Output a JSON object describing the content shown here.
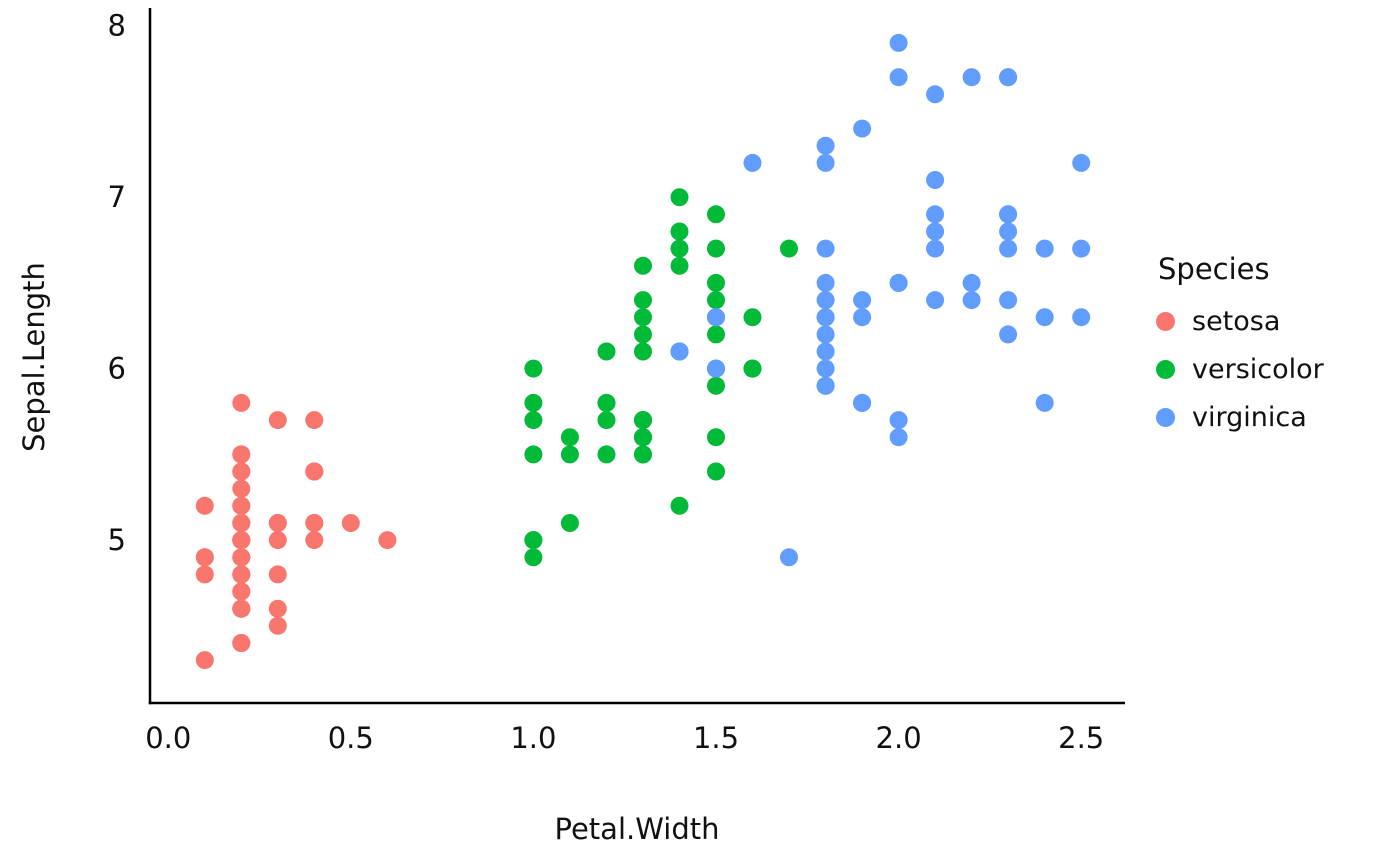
{
  "chart_data": {
    "type": "scatter",
    "title": "",
    "xlabel": "Petal.Width",
    "ylabel": "Sepal.Length",
    "xlim": [
      -0.05,
      2.62
    ],
    "ylim": [
      4.05,
      8.08
    ],
    "x_ticks": [
      "0.0",
      "0.5",
      "1.0",
      "1.5",
      "2.0",
      "2.5"
    ],
    "y_ticks": [
      "5",
      "6",
      "7",
      "8"
    ],
    "grid": false,
    "marker_radius_px": 9,
    "axis_color": "#000000",
    "text_color": "#111111",
    "legend": {
      "title": "Species",
      "position": "right"
    },
    "series": [
      {
        "name": "setosa",
        "color": "#F8766D",
        "points": [
          [
            0.2,
            5.1
          ],
          [
            0.2,
            4.9
          ],
          [
            0.2,
            4.7
          ],
          [
            0.2,
            4.6
          ],
          [
            0.2,
            5.0
          ],
          [
            0.4,
            5.4
          ],
          [
            0.3,
            4.6
          ],
          [
            0.2,
            5.0
          ],
          [
            0.2,
            4.4
          ],
          [
            0.1,
            4.9
          ],
          [
            0.2,
            5.4
          ],
          [
            0.2,
            4.8
          ],
          [
            0.1,
            4.8
          ],
          [
            0.1,
            4.3
          ],
          [
            0.2,
            5.8
          ],
          [
            0.4,
            5.7
          ],
          [
            0.4,
            5.4
          ],
          [
            0.3,
            5.1
          ],
          [
            0.3,
            5.7
          ],
          [
            0.3,
            5.1
          ],
          [
            0.2,
            5.4
          ],
          [
            0.4,
            5.1
          ],
          [
            0.2,
            4.6
          ],
          [
            0.5,
            5.1
          ],
          [
            0.2,
            4.8
          ],
          [
            0.2,
            5.0
          ],
          [
            0.4,
            5.0
          ],
          [
            0.2,
            5.2
          ],
          [
            0.2,
            5.2
          ],
          [
            0.2,
            4.7
          ],
          [
            0.2,
            4.8
          ],
          [
            0.4,
            5.4
          ],
          [
            0.1,
            5.2
          ],
          [
            0.2,
            5.5
          ],
          [
            0.2,
            4.9
          ],
          [
            0.2,
            5.0
          ],
          [
            0.2,
            5.5
          ],
          [
            0.1,
            4.9
          ],
          [
            0.2,
            4.4
          ],
          [
            0.2,
            5.1
          ],
          [
            0.3,
            5.0
          ],
          [
            0.3,
            4.5
          ],
          [
            0.2,
            4.4
          ],
          [
            0.6,
            5.0
          ],
          [
            0.4,
            5.1
          ],
          [
            0.3,
            4.8
          ],
          [
            0.2,
            5.1
          ],
          [
            0.2,
            4.6
          ],
          [
            0.2,
            5.3
          ],
          [
            0.2,
            5.0
          ]
        ]
      },
      {
        "name": "versicolor",
        "color": "#00BA38",
        "points": [
          [
            1.4,
            7.0
          ],
          [
            1.5,
            6.4
          ],
          [
            1.5,
            6.9
          ],
          [
            1.3,
            5.5
          ],
          [
            1.5,
            6.5
          ],
          [
            1.3,
            5.7
          ],
          [
            1.6,
            6.3
          ],
          [
            1.0,
            4.9
          ],
          [
            1.3,
            6.6
          ],
          [
            1.4,
            5.2
          ],
          [
            1.0,
            5.0
          ],
          [
            1.5,
            5.9
          ],
          [
            1.0,
            6.0
          ],
          [
            1.4,
            6.1
          ],
          [
            1.3,
            5.6
          ],
          [
            1.4,
            6.7
          ],
          [
            1.5,
            5.6
          ],
          [
            1.0,
            5.8
          ],
          [
            1.5,
            6.2
          ],
          [
            1.1,
            5.6
          ],
          [
            1.8,
            5.9
          ],
          [
            1.3,
            6.1
          ],
          [
            1.5,
            6.3
          ],
          [
            1.2,
            6.1
          ],
          [
            1.3,
            6.4
          ],
          [
            1.4,
            6.6
          ],
          [
            1.4,
            6.8
          ],
          [
            1.7,
            6.7
          ],
          [
            1.5,
            6.0
          ],
          [
            1.0,
            5.7
          ],
          [
            1.1,
            5.5
          ],
          [
            1.0,
            5.5
          ],
          [
            1.2,
            5.8
          ],
          [
            1.6,
            6.0
          ],
          [
            1.5,
            5.4
          ],
          [
            1.6,
            6.0
          ],
          [
            1.5,
            6.7
          ],
          [
            1.3,
            6.3
          ],
          [
            1.3,
            5.6
          ],
          [
            1.3,
            5.5
          ],
          [
            1.2,
            5.5
          ],
          [
            1.4,
            6.1
          ],
          [
            1.2,
            5.8
          ],
          [
            1.0,
            5.0
          ],
          [
            1.3,
            5.6
          ],
          [
            1.2,
            5.7
          ],
          [
            1.3,
            5.7
          ],
          [
            1.3,
            6.2
          ],
          [
            1.1,
            5.1
          ],
          [
            1.3,
            5.7
          ]
        ]
      },
      {
        "name": "virginica",
        "color": "#619CFF",
        "points": [
          [
            2.5,
            6.3
          ],
          [
            1.9,
            5.8
          ],
          [
            2.1,
            7.1
          ],
          [
            1.8,
            6.3
          ],
          [
            2.2,
            6.5
          ],
          [
            2.1,
            7.6
          ],
          [
            1.7,
            4.9
          ],
          [
            1.8,
            7.3
          ],
          [
            1.8,
            6.7
          ],
          [
            2.5,
            7.2
          ],
          [
            2.0,
            6.5
          ],
          [
            1.9,
            6.4
          ],
          [
            2.1,
            6.8
          ],
          [
            2.0,
            5.7
          ],
          [
            2.4,
            5.8
          ],
          [
            2.3,
            6.4
          ],
          [
            1.8,
            6.5
          ],
          [
            2.2,
            7.7
          ],
          [
            2.3,
            7.7
          ],
          [
            1.5,
            6.0
          ],
          [
            2.3,
            6.9
          ],
          [
            2.0,
            5.6
          ],
          [
            2.0,
            7.7
          ],
          [
            1.8,
            6.3
          ],
          [
            2.1,
            6.7
          ],
          [
            1.8,
            7.2
          ],
          [
            1.8,
            6.2
          ],
          [
            1.8,
            6.1
          ],
          [
            2.1,
            6.4
          ],
          [
            1.6,
            7.2
          ],
          [
            1.9,
            7.4
          ],
          [
            2.0,
            7.9
          ],
          [
            2.2,
            6.4
          ],
          [
            1.5,
            6.3
          ],
          [
            1.4,
            6.1
          ],
          [
            2.3,
            7.7
          ],
          [
            2.4,
            6.3
          ],
          [
            1.8,
            6.4
          ],
          [
            1.8,
            6.0
          ],
          [
            2.1,
            6.9
          ],
          [
            2.4,
            6.7
          ],
          [
            2.3,
            6.9
          ],
          [
            1.9,
            5.8
          ],
          [
            2.3,
            6.8
          ],
          [
            2.5,
            6.7
          ],
          [
            2.3,
            6.7
          ],
          [
            1.9,
            6.3
          ],
          [
            2.0,
            6.5
          ],
          [
            2.3,
            6.2
          ],
          [
            1.8,
            5.9
          ]
        ]
      }
    ]
  }
}
